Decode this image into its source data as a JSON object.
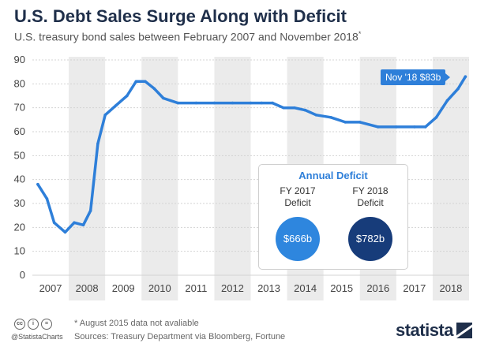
{
  "header": {
    "title": "U.S. Debt Sales Surge Along with Deficit",
    "subtitle": "U.S. treasury bond sales between February 2007 and November 2018",
    "subtitle_mark": "*"
  },
  "callout": {
    "label": "Nov '18 $83b"
  },
  "deficit": {
    "title": "Annual Deficit",
    "fy2017_line1": "FY 2017",
    "fy2017_line2": "Deficit",
    "fy2017_value": "$666b",
    "fy2018_line1": "FY 2018",
    "fy2018_line2": "Deficit",
    "fy2018_value": "$782b"
  },
  "footer": {
    "note": "* August 2015 data not avaliable",
    "sources": "Sources: Treasury Department via Bloomberg, Fortune",
    "handle": "@StatistaCharts",
    "brand": "statista",
    "cc_icons": [
      "cc",
      "i",
      "="
    ]
  },
  "colors": {
    "line": "#2e7fd9",
    "band": "#ebebeb",
    "callout": "#2e7fd9",
    "bubble_2017": "#2e86de",
    "bubble_2018": "#173c7a",
    "title": "#1f2f4a"
  },
  "chart_data": {
    "type": "line",
    "ylim": [
      0,
      90
    ],
    "yticks": [
      0,
      10,
      20,
      30,
      40,
      50,
      60,
      70,
      80,
      90
    ],
    "xlim": [
      2007.0,
      2019.0
    ],
    "year_labels": [
      "2007",
      "2008",
      "2009",
      "2010",
      "2011",
      "2012",
      "2013",
      "2014",
      "2015",
      "2016",
      "2017",
      "2018"
    ],
    "grid": "horizontal",
    "shaded_years": [
      "2008",
      "2010",
      "2012",
      "2014",
      "2016",
      "2018"
    ],
    "series": [
      {
        "x": [
          2007.15,
          2007.4,
          2007.6,
          2007.9,
          2008.15,
          2008.4,
          2008.6,
          2008.8,
          2009.0,
          2009.3,
          2009.6,
          2009.85,
          2010.1,
          2010.35,
          2010.6,
          2011.0,
          2011.5,
          2012.0,
          2012.5,
          2013.0,
          2013.3,
          2013.6,
          2013.9,
          2014.2,
          2014.5,
          2014.8,
          2015.2,
          2015.6,
          2016.0,
          2016.5,
          2017.0,
          2017.5,
          2017.8,
          2018.1,
          2018.4,
          2018.7,
          2018.9
        ],
        "y": [
          38,
          32,
          22,
          18,
          22,
          21,
          27,
          55,
          67,
          71,
          75,
          81,
          81,
          78,
          74,
          72,
          72,
          72,
          72,
          72,
          72,
          72,
          70,
          70,
          69,
          67,
          66,
          64,
          64,
          62,
          62,
          62,
          62,
          66,
          73,
          78,
          83
        ]
      }
    ]
  }
}
